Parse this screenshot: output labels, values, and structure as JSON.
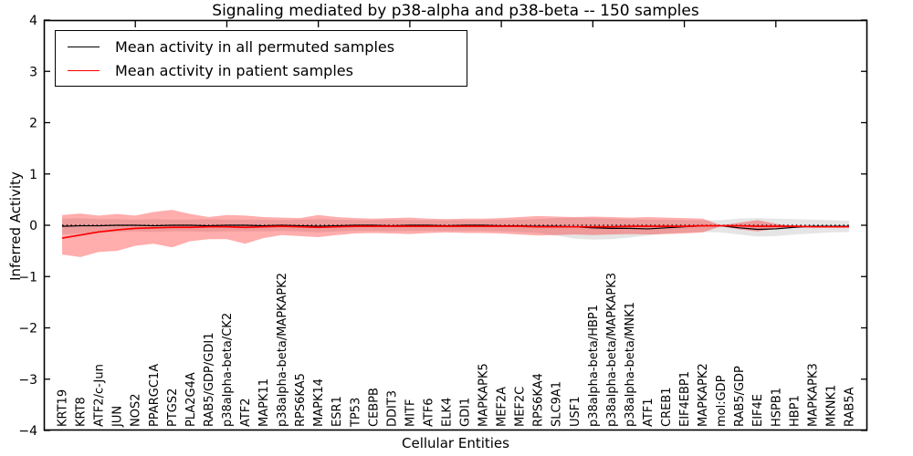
{
  "chart_data": {
    "type": "line",
    "title": "Signaling mediated by p38-alpha and p38-beta -- 150 samples",
    "xlabel": "Cellular Entities",
    "ylabel": "Inferred Activity",
    "ylim": [
      -4,
      4
    ],
    "xlim": [
      0,
      45
    ],
    "grid": false,
    "legend_position": "upper left",
    "zero_line": 0,
    "ytick_labels": [
      "4",
      "3",
      "2",
      "1",
      "0",
      "−1",
      "−2",
      "−3",
      "−4"
    ],
    "ytick_values": [
      4,
      3,
      2,
      1,
      0,
      -1,
      -2,
      -3,
      -4
    ],
    "top_tick_values": [
      5,
      10,
      15,
      20,
      25,
      30,
      35,
      40
    ],
    "categories": [
      "KRT19",
      "KRT8",
      "ATF2/c-Jun",
      "JUN",
      "NOS2",
      "PPARGC1A",
      "PTGS2",
      "PLA2G4A",
      "RAB5/GDP/GDI1",
      "p38alpha-beta/CK2",
      "ATF2",
      "MAPK11",
      "p38alpha-beta/MAPKAPK2",
      "RPS6KA5",
      "MAPK14",
      "ESR1",
      "TP53",
      "CEBPB",
      "DDIT3",
      "MITF",
      "ATF6",
      "ELK4",
      "GDI1",
      "MAPKAPK5",
      "MEF2A",
      "MEF2C",
      "RPS6KA4",
      "SLC9A1",
      "USF1",
      "p38alpha-beta/HBP1",
      "p38alpha-beta/MAPKAPK3",
      "p38alpha-beta/MNK1",
      "ATF1",
      "CREB1",
      "EIF4EBP1",
      "MAPKAPK2",
      "mol:GDP",
      "RAB5/GDP",
      "EIF4E",
      "HSPB1",
      "HBP1",
      "MAPKAPK3",
      "MKNK1",
      "RAB5A"
    ],
    "legend": [
      {
        "label": "Mean activity in all permuted samples",
        "color": "#000000"
      },
      {
        "label": "Mean activity in patient samples",
        "color": "#ff0000"
      }
    ],
    "series": [
      {
        "name": "Mean activity in all permuted samples",
        "color": "#000000",
        "values": [
          -0.02,
          -0.01,
          -0.01,
          0,
          0,
          -0.01,
          0,
          0,
          -0.01,
          0,
          0,
          -0.01,
          0,
          -0.01,
          -0.02,
          -0.01,
          0,
          0,
          -0.01,
          0,
          0,
          -0.01,
          0,
          0,
          -0.01,
          -0.01,
          -0.02,
          -0.02,
          -0.03,
          -0.05,
          -0.06,
          -0.06,
          -0.07,
          -0.05,
          -0.03,
          -0.01,
          -0.01,
          -0.05,
          -0.08,
          -0.07,
          -0.04,
          -0.02,
          -0.02,
          -0.02
        ]
      },
      {
        "name": "Mean activity in patient samples",
        "color": "#ff0000",
        "values": [
          -0.25,
          -0.19,
          -0.13,
          -0.09,
          -0.06,
          -0.05,
          -0.04,
          -0.04,
          -0.03,
          -0.03,
          -0.04,
          -0.03,
          -0.02,
          -0.03,
          -0.04,
          -0.03,
          -0.02,
          -0.02,
          -0.02,
          -0.02,
          -0.02,
          -0.02,
          -0.02,
          -0.02,
          -0.02,
          -0.02,
          -0.03,
          -0.03,
          -0.03,
          -0.03,
          -0.03,
          -0.02,
          -0.02,
          -0.02,
          -0.02,
          -0.01,
          -0.01,
          -0.01,
          -0.02,
          -0.02,
          -0.02,
          -0.03,
          -0.03,
          -0.03
        ]
      }
    ],
    "bands": [
      {
        "name": "permuted-std-band",
        "color": "rgba(0,0,0,0.10)",
        "upper": [
          0.13,
          0.14,
          0.12,
          0.12,
          0.11,
          0.12,
          0.11,
          0.11,
          0.12,
          0.11,
          0.11,
          0.11,
          0.1,
          0.11,
          0.12,
          0.11,
          0.1,
          0.1,
          0.11,
          0.1,
          0.1,
          0.1,
          0.1,
          0.1,
          0.11,
          0.11,
          0.12,
          0.14,
          0.15,
          0.14,
          0.13,
          0.12,
          0.11,
          0.11,
          0.1,
          0.1,
          0.1,
          0.13,
          0.14,
          0.13,
          0.12,
          0.11,
          0.1,
          0.09
        ],
        "lower": [
          -0.18,
          -0.16,
          -0.14,
          -0.13,
          -0.12,
          -0.13,
          -0.12,
          -0.12,
          -0.13,
          -0.12,
          -0.12,
          -0.12,
          -0.11,
          -0.12,
          -0.14,
          -0.12,
          -0.11,
          -0.11,
          -0.12,
          -0.11,
          -0.11,
          -0.11,
          -0.11,
          -0.11,
          -0.12,
          -0.13,
          -0.15,
          -0.2,
          -0.26,
          -0.28,
          -0.27,
          -0.24,
          -0.2,
          -0.16,
          -0.14,
          -0.13,
          -0.14,
          -0.18,
          -0.22,
          -0.21,
          -0.18,
          -0.16,
          -0.14,
          -0.13
        ]
      },
      {
        "name": "patient-std-band",
        "color": "rgba(255,0,0,0.32)",
        "upper": [
          0.2,
          0.23,
          0.19,
          0.22,
          0.19,
          0.26,
          0.3,
          0.22,
          0.16,
          0.2,
          0.19,
          0.16,
          0.15,
          0.14,
          0.2,
          0.16,
          0.14,
          0.13,
          0.14,
          0.15,
          0.13,
          0.12,
          0.13,
          0.13,
          0.14,
          0.16,
          0.18,
          0.17,
          0.16,
          0.17,
          0.16,
          0.15,
          0.16,
          0.15,
          0.14,
          0.13,
          0.0,
          0.05,
          0.1,
          0.03,
          -0.02,
          -0.03,
          -0.03,
          -0.03
        ],
        "lower": [
          -0.57,
          -0.62,
          -0.52,
          -0.5,
          -0.4,
          -0.36,
          -0.43,
          -0.31,
          -0.27,
          -0.27,
          -0.36,
          -0.25,
          -0.19,
          -0.21,
          -0.23,
          -0.19,
          -0.16,
          -0.15,
          -0.16,
          -0.17,
          -0.15,
          -0.14,
          -0.15,
          -0.15,
          -0.16,
          -0.18,
          -0.2,
          -0.19,
          -0.18,
          -0.19,
          -0.18,
          -0.17,
          -0.18,
          -0.17,
          -0.16,
          -0.14,
          -0.02,
          -0.08,
          -0.12,
          -0.07,
          -0.02,
          -0.03,
          -0.03,
          -0.03
        ]
      }
    ]
  }
}
